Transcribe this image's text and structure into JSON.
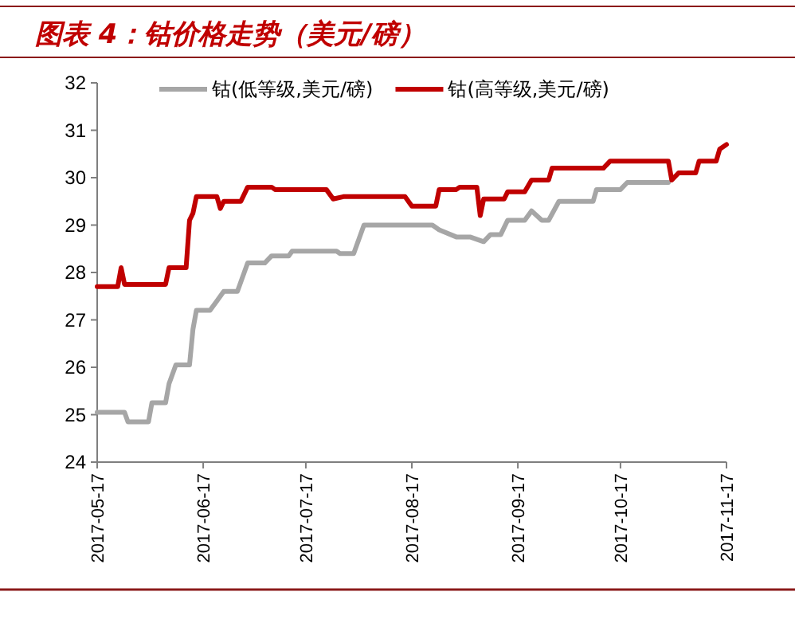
{
  "chart_data": {
    "type": "line",
    "title": "图表 4：钴价格走势（美元/磅）",
    "xlim": [
      "2017-05-17",
      "2017-11-17"
    ],
    "xticks": [
      "2017-05-17",
      "2017-06-17",
      "2017-07-17",
      "2017-08-17",
      "2017-09-17",
      "2017-10-17",
      "2017-11-17"
    ],
    "ylim": [
      24,
      32
    ],
    "yticks": [
      24,
      25,
      26,
      27,
      28,
      29,
      30,
      31,
      32
    ],
    "grid": false,
    "legend": "top",
    "series": [
      {
        "name": "钴(低等级,美元/磅)",
        "color": "#a6a6a6",
        "x": [
          "2017-05-17",
          "2017-05-25",
          "2017-05-26",
          "2017-06-01",
          "2017-06-02",
          "2017-06-06",
          "2017-06-07",
          "2017-06-09",
          "2017-06-13",
          "2017-06-14",
          "2017-06-15",
          "2017-06-19",
          "2017-06-21",
          "2017-06-23",
          "2017-06-27",
          "2017-06-30",
          "2017-07-05",
          "2017-07-07",
          "2017-07-12",
          "2017-07-13",
          "2017-07-26",
          "2017-07-27",
          "2017-07-31",
          "2017-08-03",
          "2017-08-23",
          "2017-08-25",
          "2017-08-30",
          "2017-09-03",
          "2017-09-07",
          "2017-09-09",
          "2017-09-12",
          "2017-09-14",
          "2017-09-19",
          "2017-09-21",
          "2017-09-24",
          "2017-09-26",
          "2017-09-29",
          "2017-10-09",
          "2017-10-10",
          "2017-10-17",
          "2017-10-19",
          "2017-10-31"
        ],
        "values": [
          25.05,
          25.05,
          24.85,
          24.85,
          25.25,
          25.25,
          25.65,
          26.05,
          26.05,
          26.8,
          27.2,
          27.2,
          27.4,
          27.6,
          27.6,
          28.2,
          28.2,
          28.35,
          28.35,
          28.45,
          28.45,
          28.4,
          28.4,
          29.0,
          29.0,
          28.9,
          28.75,
          28.75,
          28.65,
          28.8,
          28.8,
          29.1,
          29.1,
          29.3,
          29.1,
          29.1,
          29.5,
          29.5,
          29.75,
          29.75,
          29.9,
          29.9
        ]
      },
      {
        "name": "钴(高等级,美元/磅)",
        "color": "#c00000",
        "x": [
          "2017-05-17",
          "2017-05-23",
          "2017-05-24",
          "2017-05-25",
          "2017-06-06",
          "2017-06-07",
          "2017-06-12",
          "2017-06-13",
          "2017-06-14",
          "2017-06-15",
          "2017-06-21",
          "2017-06-22",
          "2017-06-23",
          "2017-06-28",
          "2017-06-30",
          "2017-07-07",
          "2017-07-08",
          "2017-07-23",
          "2017-07-25",
          "2017-07-28",
          "2017-08-15",
          "2017-08-17",
          "2017-08-24",
          "2017-08-25",
          "2017-08-30",
          "2017-08-31",
          "2017-09-05",
          "2017-09-06",
          "2017-09-07",
          "2017-09-13",
          "2017-09-14",
          "2017-09-19",
          "2017-09-21",
          "2017-09-26",
          "2017-09-27",
          "2017-10-12",
          "2017-10-14",
          "2017-10-31",
          "2017-11-01",
          "2017-11-03",
          "2017-11-08",
          "2017-11-09",
          "2017-11-14",
          "2017-11-15",
          "2017-11-17"
        ],
        "values": [
          27.7,
          27.7,
          28.1,
          27.75,
          27.75,
          28.1,
          28.1,
          29.1,
          29.25,
          29.6,
          29.6,
          29.35,
          29.5,
          29.5,
          29.8,
          29.8,
          29.75,
          29.75,
          29.55,
          29.6,
          29.6,
          29.4,
          29.4,
          29.75,
          29.75,
          29.8,
          29.8,
          29.2,
          29.55,
          29.55,
          29.7,
          29.7,
          29.95,
          29.95,
          30.2,
          30.2,
          30.35,
          30.35,
          29.95,
          30.1,
          30.1,
          30.35,
          30.35,
          30.6,
          30.7
        ]
      }
    ]
  }
}
